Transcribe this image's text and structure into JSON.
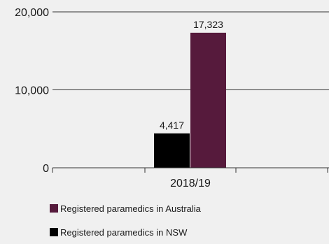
{
  "chart_data": {
    "type": "bar",
    "categories": [
      "2018/19"
    ],
    "series": [
      {
        "name": "Registered paramedics in NSW",
        "values": [
          4417
        ],
        "color": "#000000"
      },
      {
        "name": "Registered paramedics in Australia",
        "values": [
          17323
        ],
        "color": "#561a3c"
      }
    ],
    "data_labels": [
      "4,417",
      "17,323"
    ],
    "y_ticks": [
      0,
      10000,
      20000
    ],
    "y_tick_labels": [
      "0",
      "10,000",
      "20,000"
    ],
    "ylim": [
      0,
      20000
    ],
    "grid": true,
    "legend_placement": "bottom-left",
    "legend_order": [
      1,
      0
    ],
    "title": "",
    "xlabel": "",
    "ylabel": ""
  }
}
